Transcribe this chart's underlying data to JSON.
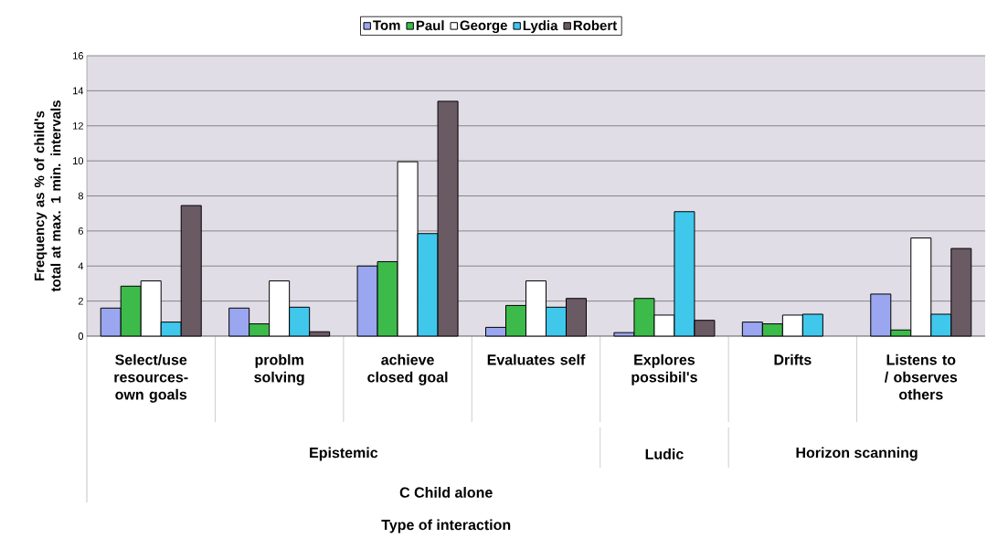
{
  "chart_data": {
    "type": "bar",
    "categories": [
      "Select/use resources-own goals",
      "problm solving",
      "achieve closed goal",
      "Evaluates self",
      "Explores possibil's",
      "Drifts",
      "Listens to / observes others"
    ],
    "series": [
      {
        "name": "Tom",
        "color": "#9aa6f0",
        "values": [
          1.6,
          1.6,
          4.0,
          0.5,
          0.2,
          0.8,
          2.4
        ]
      },
      {
        "name": "Paul",
        "color": "#3dbb4a",
        "values": [
          2.85,
          0.7,
          4.25,
          1.75,
          2.15,
          0.7,
          0.35
        ]
      },
      {
        "name": "George",
        "color": "#ffffff",
        "values": [
          3.15,
          3.15,
          9.95,
          3.15,
          1.2,
          1.2,
          5.6
        ]
      },
      {
        "name": "Lydia",
        "color": "#40c8ec",
        "values": [
          0.8,
          1.65,
          5.85,
          1.65,
          7.1,
          1.25,
          1.25
        ]
      },
      {
        "name": "Robert",
        "color": "#6a5a64",
        "values": [
          7.45,
          0.25,
          13.4,
          2.15,
          0.9,
          null,
          5.0
        ]
      }
    ],
    "ylim": [
      0,
      16
    ],
    "yticks": [
      0,
      2,
      4,
      6,
      8,
      10,
      12,
      14,
      16
    ],
    "grid": "y",
    "legend": "top",
    "ylabel": "Frequency as % of child's total at max. 1 min. intervals",
    "annotations": [
      "Epistemic",
      "Ludic",
      "Horizon scanning",
      "C Child alone",
      "Type of interaction"
    ]
  }
}
